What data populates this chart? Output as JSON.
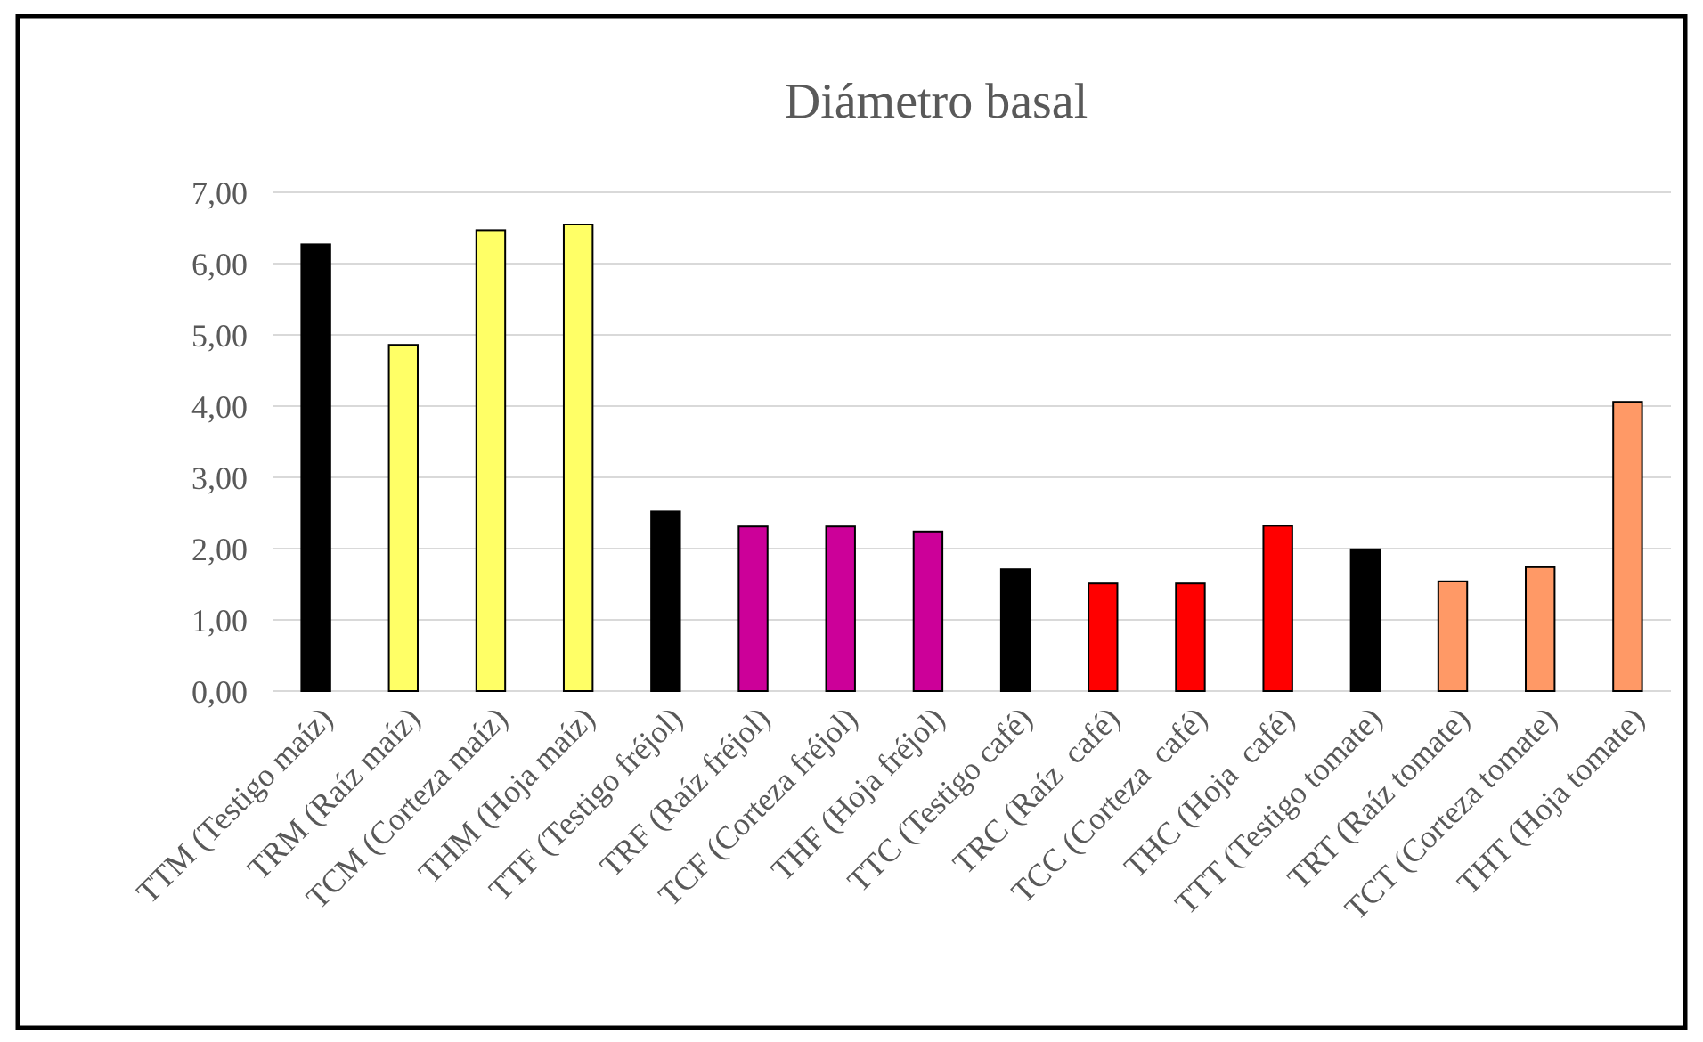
{
  "chart_data": {
    "type": "bar",
    "title": "Diámetro basal",
    "categories": [
      "TTM (Testigo maíz)",
      "TRM (Raíz maíz)",
      "TCM (Corteza maíz)",
      "THM (Hoja maíz)",
      "TTF (Testigo fréjol)",
      "TRF (Raíz fréjol)",
      "TCF (Corteza fréjol)",
      "THF (Hoja fréjol)",
      "TTC (Testigo café)",
      "TRC (Raíz  café)",
      "TCC (Corteza  café)",
      "THC (Hoja  café)",
      "TTT (Testigo tomate)",
      "TRT (Raíz tomate)",
      "TCT (Corteza tomate)",
      "THT (Hoja tomate)"
    ],
    "values": [
      6.27,
      4.86,
      6.47,
      6.55,
      2.52,
      2.31,
      2.31,
      2.24,
      1.71,
      1.51,
      1.51,
      2.32,
      1.99,
      1.54,
      1.74,
      4.06
    ],
    "colors": [
      "#000000",
      "#ffff66",
      "#ffff66",
      "#ffff66",
      "#000000",
      "#cc0099",
      "#cc0099",
      "#cc0099",
      "#000000",
      "#ff0000",
      "#ff0000",
      "#ff0000",
      "#000000",
      "#ff9966",
      "#ff9966",
      "#ff9966"
    ],
    "ylim": [
      0,
      7
    ],
    "yticks": [
      {
        "value": 0,
        "label": "0,00"
      },
      {
        "value": 1,
        "label": "1,00"
      },
      {
        "value": 2,
        "label": "2,00"
      },
      {
        "value": 3,
        "label": "3,00"
      },
      {
        "value": 4,
        "label": "4,00"
      },
      {
        "value": 5,
        "label": "5,00"
      },
      {
        "value": 6,
        "label": "6,00"
      },
      {
        "value": 7,
        "label": "7,00"
      }
    ],
    "grid": "y"
  }
}
